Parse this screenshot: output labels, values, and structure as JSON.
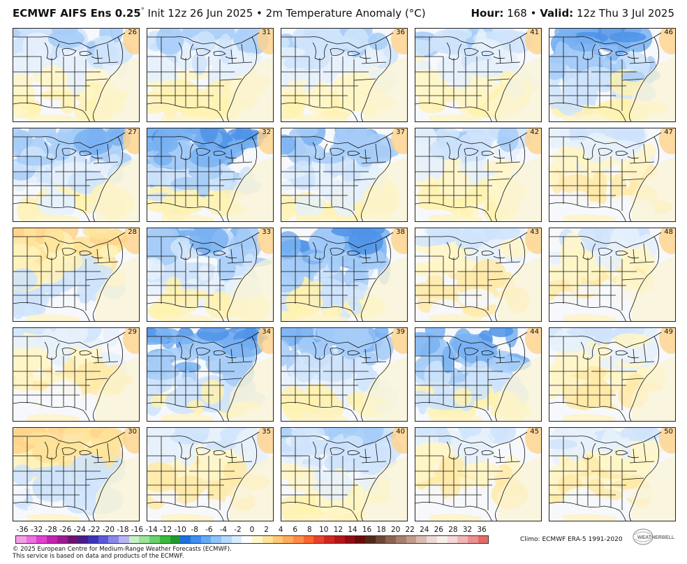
{
  "header": {
    "model": "ECMWF AIFS Ens 0.25",
    "degree": "°",
    "init": "Init 12z 26 Jun 2025",
    "bullet": "•",
    "field": "2m Temperature Anomaly (°C)",
    "hour_label": "Hour:",
    "hour_value": "168",
    "valid_label": "Valid:",
    "valid_value": "12z Thu 3 Jul 2025"
  },
  "panels": [
    {
      "member": "26",
      "bias": "cold-light"
    },
    {
      "member": "31",
      "bias": "cold-light"
    },
    {
      "member": "36",
      "bias": "cold-light"
    },
    {
      "member": "41",
      "bias": "cold-light"
    },
    {
      "member": "46",
      "bias": "cold-strong"
    },
    {
      "member": "27",
      "bias": "cold-medium"
    },
    {
      "member": "32",
      "bias": "cold-strong"
    },
    {
      "member": "37",
      "bias": "cold-medium"
    },
    {
      "member": "42",
      "bias": "cold-light"
    },
    {
      "member": "47",
      "bias": "neutral"
    },
    {
      "member": "28",
      "bias": "warm"
    },
    {
      "member": "33",
      "bias": "cold-medium"
    },
    {
      "member": "38",
      "bias": "cold-strong"
    },
    {
      "member": "43",
      "bias": "neutral"
    },
    {
      "member": "48",
      "bias": "neutral"
    },
    {
      "member": "29",
      "bias": "neutral"
    },
    {
      "member": "34",
      "bias": "cold-strong"
    },
    {
      "member": "39",
      "bias": "cold-medium"
    },
    {
      "member": "44",
      "bias": "cold-strong"
    },
    {
      "member": "49",
      "bias": "neutral"
    },
    {
      "member": "30",
      "bias": "warm"
    },
    {
      "member": "35",
      "bias": "neutral"
    },
    {
      "member": "40",
      "bias": "cold-light"
    },
    {
      "member": "45",
      "bias": "neutral"
    },
    {
      "member": "50",
      "bias": "neutral"
    }
  ],
  "colorbar": {
    "labels": [
      "-36",
      "-32",
      "-28",
      "-26",
      "-24",
      "-22",
      "-20",
      "-18",
      "-16",
      "-14",
      "-12",
      "-10",
      "-8",
      "-6",
      "-4",
      "-2",
      "0",
      "2",
      "4",
      "6",
      "8",
      "10",
      "12",
      "14",
      "16",
      "18",
      "20",
      "22",
      "24",
      "26",
      "28",
      "32",
      "36"
    ],
    "colors": [
      "#f49ee8",
      "#ee6fdf",
      "#e23fd0",
      "#c223b4",
      "#9c1a90",
      "#6e1270",
      "#4a1a8a",
      "#3b34b8",
      "#5a5ad8",
      "#8a86ea",
      "#b8b4f4",
      "#c8f0c8",
      "#9ce69c",
      "#6ad26a",
      "#3cb83c",
      "#1f9a30",
      "#1e6fe0",
      "#3c8ef0",
      "#66aaf6",
      "#8fc3f8",
      "#b5d8fb",
      "#d8ecfd",
      "#ffffff",
      "#fff7cc",
      "#ffe39a",
      "#ffc877",
      "#ffab5c",
      "#ff8c46",
      "#f8672f",
      "#e8432a",
      "#cf2622",
      "#b2151a",
      "#8e0c12",
      "#6a0a0c",
      "#4e2a1a",
      "#6e4636",
      "#8c6454",
      "#a88070",
      "#c09c90",
      "#d8bcb0",
      "#ecdad4",
      "#f8eeea",
      "#f6d8d8",
      "#f2b6b6",
      "#ec9090",
      "#e46a6a"
    ]
  },
  "climo": "Climo: ECMWF ERA-5 1991-2020",
  "footer": {
    "line1": "© 2025 European Centre for Medium-Range Weather Forecasts (ECMWF).",
    "line2": "This service is based on data and products of the ECMWF."
  },
  "logo_text": "WEATHERBELL"
}
